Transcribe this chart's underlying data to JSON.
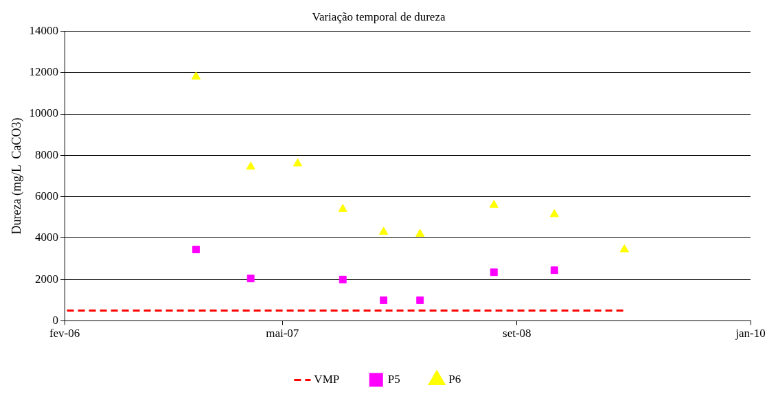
{
  "chart_data": {
    "type": "scatter",
    "title": "Variação temporal de dureza",
    "ylabel": "Dureza (mg/L  CaCO3)",
    "xlim": [
      "2006-02",
      "2010-01"
    ],
    "xticks": [
      {
        "value": "2006-02",
        "label": "fev-06"
      },
      {
        "value": "2007-05",
        "label": "mai-07"
      },
      {
        "value": "2008-09",
        "label": "set-08"
      },
      {
        "value": "2010-01",
        "label": "jan-10"
      }
    ],
    "ylim": [
      0,
      14000
    ],
    "yticks": [
      0,
      2000,
      4000,
      6000,
      8000,
      10000,
      12000,
      14000
    ],
    "grid": "y",
    "legend": "bottom",
    "series": [
      {
        "name": "VMP",
        "type": "line",
        "color": "#ff0000",
        "line_style": "dashed",
        "marker": "none",
        "x": [
          "2006-02-06",
          "2009-04-13"
        ],
        "values": [
          500,
          500
        ]
      },
      {
        "name": "P5",
        "color": "#ff00ff",
        "marker": "square",
        "x": [
          "2006-11-02",
          "2007-02-24",
          "2007-09-04",
          "2007-11-28",
          "2008-02-12",
          "2008-07-15",
          "2008-11-18"
        ],
        "values": [
          3450,
          2050,
          2000,
          1000,
          1000,
          2350,
          2450
        ]
      },
      {
        "name": "P6",
        "color": "#ffff00",
        "marker": "triangle",
        "x": [
          "2006-11-02",
          "2007-02-24",
          "2007-06-02",
          "2007-09-04",
          "2007-11-28",
          "2008-02-12",
          "2008-07-15",
          "2008-11-18",
          "2009-04-13"
        ],
        "values": [
          11800,
          7450,
          7600,
          5400,
          4300,
          4200,
          5600,
          5150,
          3450
        ]
      }
    ]
  }
}
